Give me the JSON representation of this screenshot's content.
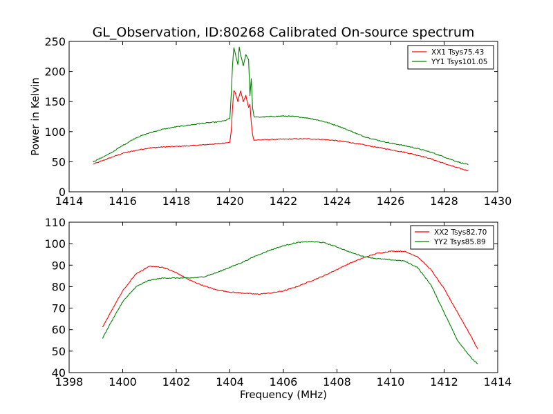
{
  "colors": {
    "red": "#ff0000",
    "green": "#008000",
    "axis": "#000000",
    "background": "#ffffff"
  },
  "chart_data": [
    {
      "type": "line",
      "title": "GL_Observation, ID:80268 Calibrated On-source spectrum",
      "xlabel": "",
      "ylabel": "Power in Kelvin",
      "xlim": [
        1414,
        1430
      ],
      "ylim": [
        0,
        250
      ],
      "xticks": [
        1414,
        1416,
        1418,
        1420,
        1422,
        1424,
        1426,
        1428,
        1430
      ],
      "yticks": [
        0,
        50,
        100,
        150,
        200,
        250
      ],
      "grid": false,
      "legend": "top-right",
      "series": [
        {
          "name": "XX1 Tsys75.43",
          "color": "#ff0000",
          "x": [
            1414.9,
            1415.5,
            1416.0,
            1416.5,
            1417.0,
            1417.5,
            1418.0,
            1418.5,
            1419.0,
            1419.5,
            1419.8,
            1420.0,
            1420.05,
            1420.1,
            1420.15,
            1420.2,
            1420.3,
            1420.4,
            1420.5,
            1420.6,
            1420.7,
            1420.75,
            1420.8,
            1420.85,
            1420.9,
            1421.0,
            1421.5,
            1422.0,
            1422.5,
            1423.0,
            1423.5,
            1424.0,
            1424.5,
            1425.0,
            1425.5,
            1426.0,
            1426.5,
            1427.0,
            1427.5,
            1428.0,
            1428.5,
            1428.9
          ],
          "y": [
            46,
            56,
            64,
            69,
            73,
            74.5,
            75.5,
            76.5,
            78,
            80,
            81,
            83,
            100,
            140,
            168,
            165,
            150,
            168,
            150,
            160,
            140,
            145,
            115,
            95,
            86,
            86,
            87,
            87.5,
            88,
            88,
            87,
            85,
            82,
            78,
            74,
            70,
            66,
            61,
            55,
            47,
            40,
            35
          ]
        },
        {
          "name": "YY1 Tsys101.05",
          "color": "#008000",
          "x": [
            1414.9,
            1415.5,
            1416.0,
            1416.5,
            1417.0,
            1417.5,
            1418.0,
            1418.5,
            1419.0,
            1419.5,
            1419.8,
            1420.0,
            1420.05,
            1420.1,
            1420.15,
            1420.2,
            1420.3,
            1420.35,
            1420.4,
            1420.5,
            1420.6,
            1420.7,
            1420.75,
            1420.8,
            1420.85,
            1420.9,
            1421.0,
            1421.5,
            1422.0,
            1422.5,
            1423.0,
            1423.5,
            1424.0,
            1424.5,
            1425.0,
            1425.5,
            1426.0,
            1426.5,
            1427.0,
            1427.5,
            1428.0,
            1428.5,
            1428.9
          ],
          "y": [
            50,
            63,
            77,
            90,
            98,
            104,
            108,
            111,
            114,
            116,
            118,
            122,
            160,
            210,
            240,
            230,
            212,
            240,
            228,
            210,
            228,
            220,
            160,
            188,
            140,
            125,
            124,
            125,
            126,
            125,
            122,
            117,
            110,
            101,
            92,
            86,
            81,
            77,
            72,
            66,
            58,
            50,
            45
          ]
        }
      ]
    },
    {
      "type": "line",
      "title": "",
      "xlabel": "Frequency (MHz)",
      "ylabel": "",
      "xlim": [
        1398,
        1414
      ],
      "ylim": [
        40,
        110
      ],
      "xticks": [
        1398,
        1400,
        1402,
        1404,
        1406,
        1408,
        1410,
        1412,
        1414
      ],
      "yticks": [
        40,
        50,
        60,
        70,
        80,
        90,
        100,
        110
      ],
      "grid": false,
      "legend": "top-right",
      "series": [
        {
          "name": "XX2 Tsys82.70",
          "color": "#ff0000",
          "x": [
            1399.25,
            1399.5,
            1400.0,
            1400.5,
            1401.0,
            1401.5,
            1402.0,
            1402.5,
            1403.0,
            1403.5,
            1404.0,
            1404.5,
            1405.0,
            1405.5,
            1406.0,
            1406.5,
            1407.0,
            1407.5,
            1408.0,
            1408.5,
            1409.0,
            1409.5,
            1410.0,
            1410.5,
            1411.0,
            1411.5,
            1412.0,
            1412.5,
            1413.0,
            1413.25
          ],
          "y": [
            61,
            67,
            78,
            86,
            89.5,
            89,
            86.5,
            83,
            80.5,
            78.5,
            77.5,
            77,
            76.5,
            77,
            78,
            80,
            82.5,
            85,
            88,
            91,
            93.5,
            95.5,
            96.5,
            96.5,
            94,
            88,
            79,
            68,
            57,
            51
          ]
        },
        {
          "name": "YY2 Tsys85.89",
          "color": "#008000",
          "x": [
            1399.25,
            1399.5,
            1400.0,
            1400.5,
            1401.0,
            1401.5,
            1402.0,
            1402.5,
            1403.0,
            1403.5,
            1404.0,
            1404.5,
            1405.0,
            1405.5,
            1406.0,
            1406.5,
            1407.0,
            1407.5,
            1408.0,
            1408.5,
            1409.0,
            1409.5,
            1410.0,
            1410.5,
            1411.0,
            1411.5,
            1412.0,
            1412.5,
            1413.0,
            1413.25
          ],
          "y": [
            56,
            62,
            73,
            80,
            83,
            84,
            84,
            84,
            84.5,
            86.5,
            89,
            91.5,
            94.5,
            97,
            99,
            100.5,
            101,
            100.5,
            98.5,
            96,
            94,
            93,
            92.5,
            92,
            89,
            81,
            68,
            55,
            47,
            44
          ]
        }
      ]
    }
  ]
}
